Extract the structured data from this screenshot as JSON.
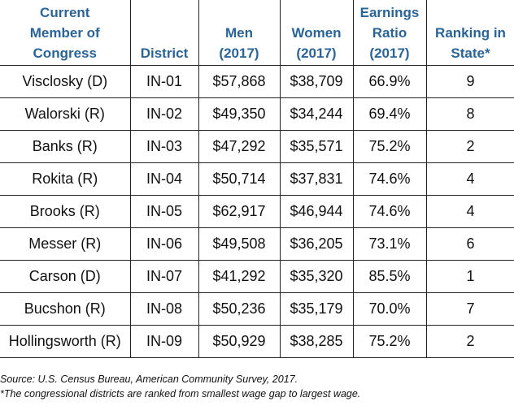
{
  "table": {
    "headers": [
      "Current Member of Congress",
      "District",
      "Men (2017)",
      "Women (2017)",
      "Earnings Ratio (2017)",
      "Ranking in State*"
    ],
    "header_lines": [
      [
        "Current",
        "Member of",
        "Congress"
      ],
      [
        "District"
      ],
      [
        "Men",
        "(2017)"
      ],
      [
        "Women",
        "(2017)"
      ],
      [
        "Earnings",
        "Ratio",
        "(2017)"
      ],
      [
        "Ranking in",
        "State*"
      ]
    ],
    "rows": [
      [
        "Visclosky (D)",
        "IN-01",
        "$57,868",
        "$38,709",
        "66.9%",
        "9"
      ],
      [
        "Walorski (R)",
        "IN-02",
        "$49,350",
        "$34,244",
        "69.4%",
        "8"
      ],
      [
        "Banks (R)",
        "IN-03",
        "$47,292",
        "$35,571",
        "75.2%",
        "2"
      ],
      [
        "Rokita (R)",
        "IN-04",
        "$50,714",
        "$37,831",
        "74.6%",
        "4"
      ],
      [
        "Brooks (R)",
        "IN-05",
        "$62,917",
        "$46,944",
        "74.6%",
        "4"
      ],
      [
        "Messer (R)",
        "IN-06",
        "$49,508",
        "$36,205",
        "73.1%",
        "6"
      ],
      [
        "Carson (D)",
        "IN-07",
        "$41,292",
        "$35,320",
        "85.5%",
        "1"
      ],
      [
        "Bucshon (R)",
        "IN-08",
        "$50,236",
        "$35,179",
        "70.0%",
        "7"
      ],
      [
        "Hollingsworth (R)",
        "IN-09",
        "$50,929",
        "$38,285",
        "75.2%",
        "2"
      ]
    ],
    "header_color": "#2a6496"
  },
  "footnotes": {
    "source": "Source: U.S. Census Bureau, American Community Survey, 2017.",
    "note": "*The congressional districts are ranked from smallest wage gap to largest wage."
  }
}
